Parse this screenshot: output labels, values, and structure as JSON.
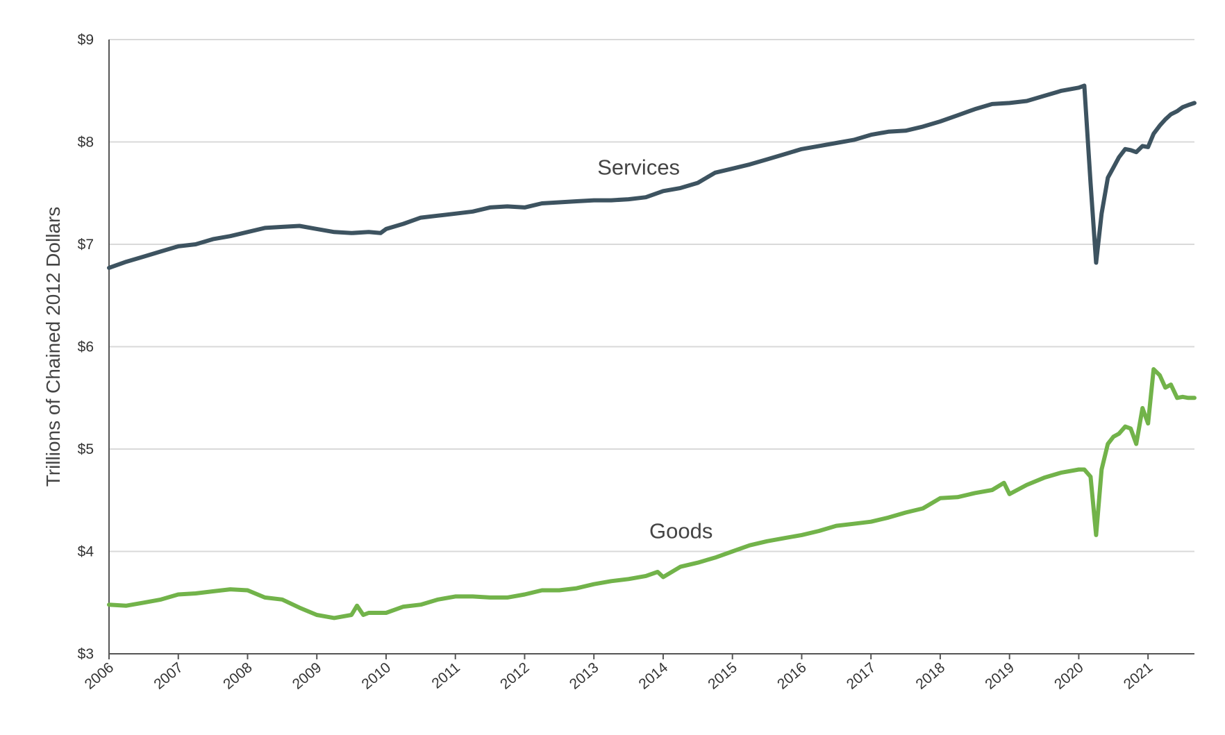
{
  "chart_data": {
    "type": "line",
    "title": "",
    "xlabel": "",
    "ylabel": "Trillions of Chained 2012 Dollars",
    "ylim": [
      3,
      9
    ],
    "xlim": [
      2006,
      2021.67
    ],
    "yticks": [
      3,
      4,
      5,
      6,
      7,
      8,
      9
    ],
    "ytick_labels": [
      "$3",
      "$4",
      "$5",
      "$6",
      "$7",
      "$8",
      "$9"
    ],
    "xticks": [
      2006,
      2007,
      2008,
      2009,
      2010,
      2011,
      2012,
      2013,
      2014,
      2015,
      2016,
      2017,
      2018,
      2019,
      2020,
      2021
    ],
    "xtick_labels": [
      "2006",
      "2007",
      "2008",
      "2009",
      "2010",
      "2011",
      "2012",
      "2013",
      "2014",
      "2015",
      "2016",
      "2017",
      "2018",
      "2019",
      "2020",
      "2021"
    ],
    "grid": true,
    "series": [
      {
        "name": "Services",
        "color": "#3d5360",
        "x": [
          2006.0,
          2006.25,
          2006.5,
          2006.75,
          2007.0,
          2007.25,
          2007.5,
          2007.75,
          2008.0,
          2008.25,
          2008.5,
          2008.75,
          2009.0,
          2009.25,
          2009.5,
          2009.75,
          2009.92,
          2010.0,
          2010.25,
          2010.5,
          2010.75,
          2011.0,
          2011.25,
          2011.5,
          2011.75,
          2012.0,
          2012.25,
          2012.5,
          2012.75,
          2013.0,
          2013.25,
          2013.5,
          2013.75,
          2014.0,
          2014.25,
          2014.5,
          2014.75,
          2015.0,
          2015.25,
          2015.5,
          2015.75,
          2016.0,
          2016.25,
          2016.5,
          2016.75,
          2017.0,
          2017.25,
          2017.5,
          2017.75,
          2018.0,
          2018.25,
          2018.5,
          2018.75,
          2019.0,
          2019.25,
          2019.5,
          2019.75,
          2020.0,
          2020.08,
          2020.17,
          2020.25,
          2020.33,
          2020.42,
          2020.5,
          2020.58,
          2020.67,
          2020.75,
          2020.83,
          2020.92,
          2021.0,
          2021.08,
          2021.17,
          2021.25,
          2021.33,
          2021.42,
          2021.5,
          2021.58,
          2021.67
        ],
        "values": [
          6.77,
          6.83,
          6.88,
          6.93,
          6.98,
          7.0,
          7.05,
          7.08,
          7.12,
          7.16,
          7.17,
          7.18,
          7.15,
          7.12,
          7.11,
          7.12,
          7.11,
          7.15,
          7.2,
          7.26,
          7.28,
          7.3,
          7.32,
          7.36,
          7.37,
          7.36,
          7.4,
          7.41,
          7.42,
          7.43,
          7.43,
          7.44,
          7.46,
          7.52,
          7.55,
          7.6,
          7.7,
          7.74,
          7.78,
          7.83,
          7.88,
          7.93,
          7.96,
          7.99,
          8.02,
          8.07,
          8.1,
          8.11,
          8.15,
          8.2,
          8.26,
          8.32,
          8.37,
          8.38,
          8.4,
          8.45,
          8.5,
          8.53,
          8.55,
          7.6,
          6.82,
          7.3,
          7.65,
          7.75,
          7.85,
          7.93,
          7.92,
          7.9,
          7.96,
          7.95,
          8.08,
          8.16,
          8.22,
          8.27,
          8.3,
          8.34,
          8.36,
          8.38
        ]
      },
      {
        "name": "Goods",
        "color": "#72b34a",
        "x": [
          2006.0,
          2006.25,
          2006.5,
          2006.75,
          2007.0,
          2007.25,
          2007.5,
          2007.75,
          2008.0,
          2008.25,
          2008.5,
          2008.75,
          2009.0,
          2009.25,
          2009.5,
          2009.58,
          2009.67,
          2009.75,
          2010.0,
          2010.25,
          2010.5,
          2010.75,
          2011.0,
          2011.25,
          2011.5,
          2011.75,
          2012.0,
          2012.25,
          2012.5,
          2012.75,
          2013.0,
          2013.25,
          2013.5,
          2013.75,
          2013.92,
          2014.0,
          2014.25,
          2014.5,
          2014.75,
          2015.0,
          2015.25,
          2015.5,
          2015.75,
          2016.0,
          2016.25,
          2016.5,
          2016.75,
          2017.0,
          2017.25,
          2017.5,
          2017.75,
          2018.0,
          2018.25,
          2018.5,
          2018.75,
          2018.92,
          2019.0,
          2019.25,
          2019.5,
          2019.75,
          2020.0,
          2020.08,
          2020.17,
          2020.25,
          2020.33,
          2020.42,
          2020.5,
          2020.58,
          2020.67,
          2020.75,
          2020.83,
          2020.92,
          2021.0,
          2021.08,
          2021.17,
          2021.25,
          2021.33,
          2021.42,
          2021.5,
          2021.58,
          2021.67
        ],
        "values": [
          3.48,
          3.47,
          3.5,
          3.53,
          3.58,
          3.59,
          3.61,
          3.63,
          3.62,
          3.55,
          3.53,
          3.45,
          3.38,
          3.35,
          3.38,
          3.47,
          3.38,
          3.4,
          3.4,
          3.46,
          3.48,
          3.53,
          3.56,
          3.56,
          3.55,
          3.55,
          3.58,
          3.62,
          3.62,
          3.64,
          3.68,
          3.71,
          3.73,
          3.76,
          3.8,
          3.75,
          3.85,
          3.89,
          3.94,
          4.0,
          4.06,
          4.1,
          4.13,
          4.16,
          4.2,
          4.25,
          4.27,
          4.29,
          4.33,
          4.38,
          4.42,
          4.52,
          4.53,
          4.57,
          4.6,
          4.67,
          4.56,
          4.65,
          4.72,
          4.77,
          4.8,
          4.8,
          4.73,
          4.16,
          4.8,
          5.05,
          5.12,
          5.15,
          5.22,
          5.2,
          5.05,
          5.4,
          5.25,
          5.78,
          5.72,
          5.6,
          5.63,
          5.5,
          5.51,
          5.5,
          5.5
        ]
      }
    ],
    "annotations": [
      {
        "text": "Services",
        "x": 2013.05,
        "y": 7.68
      },
      {
        "text": "Goods",
        "x": 2013.8,
        "y": 4.13
      }
    ]
  }
}
